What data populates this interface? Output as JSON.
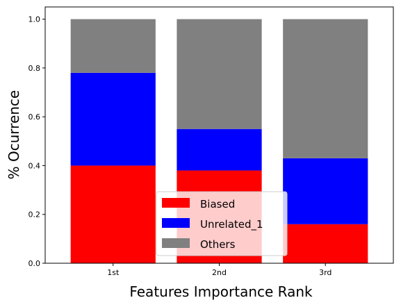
{
  "chart_data": {
    "type": "bar",
    "stacked": true,
    "title": "",
    "xlabel": "Features Importance Rank",
    "ylabel": "% Ocurrence",
    "categories": [
      "1st",
      "2nd",
      "3rd"
    ],
    "series": [
      {
        "name": "Biased",
        "color": "#ff0000",
        "values": [
          0.4,
          0.38,
          0.16
        ]
      },
      {
        "name": "Unrelated_1",
        "color": "#0000ff",
        "values": [
          0.38,
          0.17,
          0.27
        ]
      },
      {
        "name": "Others",
        "color": "#808080",
        "values": [
          0.22,
          0.45,
          0.57
        ]
      }
    ],
    "ylim": [
      0,
      1.05
    ],
    "yticks": [
      "0.0",
      "0.2",
      "0.4",
      "0.6",
      "0.8",
      "1.0"
    ],
    "grid": false,
    "legend_position": "lower center"
  }
}
